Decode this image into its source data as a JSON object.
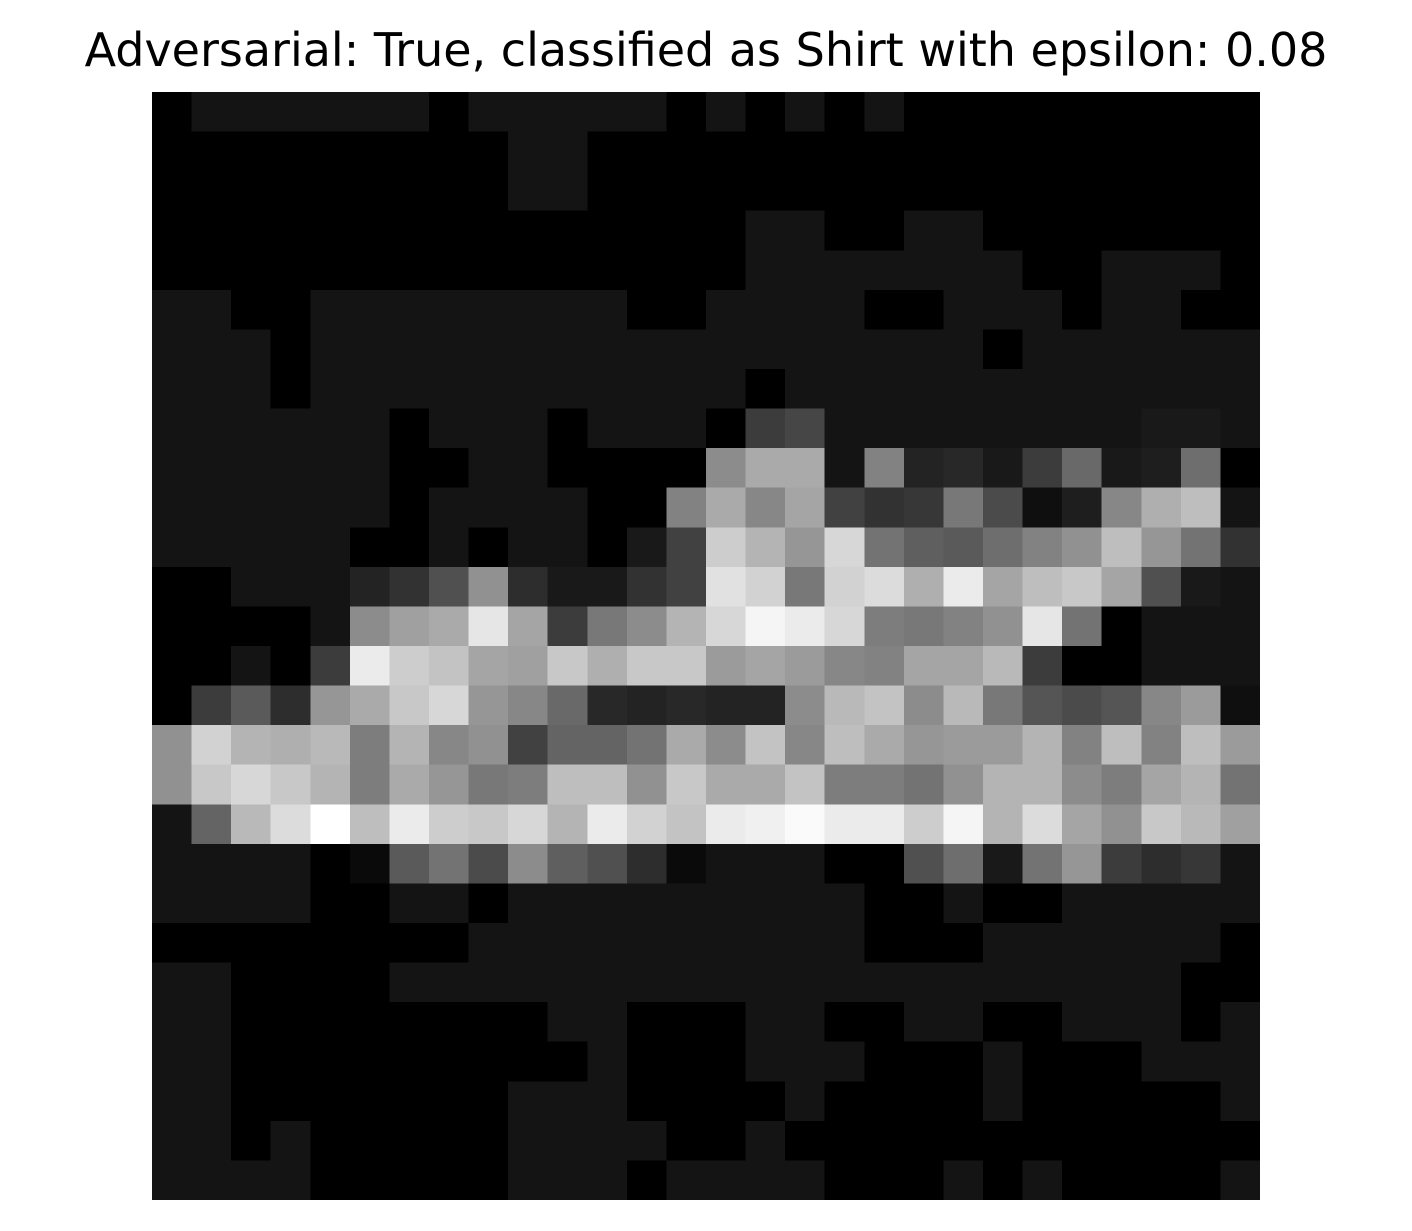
{
  "title": "Adversarial: True, classified as Shirt with epsilon: 0.08",
  "image": {
    "description_label": "Adversarial grayscale sample",
    "rows": 28,
    "cols": 28,
    "pixels": [
      [
        0,
        20,
        20,
        20,
        20,
        20,
        20,
        0,
        20,
        20,
        20,
        20,
        20,
        0,
        20,
        0,
        20,
        0,
        20,
        0,
        0,
        0,
        0,
        0,
        0,
        0,
        0,
        0
      ],
      [
        0,
        0,
        0,
        0,
        0,
        0,
        0,
        0,
        0,
        20,
        20,
        0,
        0,
        0,
        0,
        0,
        0,
        0,
        0,
        0,
        0,
        0,
        0,
        0,
        0,
        0,
        0,
        0
      ],
      [
        0,
        0,
        0,
        0,
        0,
        0,
        0,
        0,
        0,
        20,
        20,
        0,
        0,
        0,
        0,
        0,
        0,
        0,
        0,
        0,
        0,
        0,
        0,
        0,
        0,
        0,
        0,
        0
      ],
      [
        0,
        0,
        0,
        0,
        0,
        0,
        0,
        0,
        0,
        0,
        0,
        0,
        0,
        0,
        0,
        20,
        20,
        0,
        0,
        20,
        20,
        0,
        0,
        0,
        0,
        0,
        0,
        0
      ],
      [
        0,
        0,
        0,
        0,
        0,
        0,
        0,
        0,
        0,
        0,
        0,
        0,
        0,
        0,
        0,
        20,
        20,
        20,
        20,
        20,
        20,
        20,
        0,
        0,
        20,
        20,
        20,
        0
      ],
      [
        20,
        20,
        0,
        0,
        20,
        20,
        20,
        20,
        20,
        20,
        20,
        20,
        0,
        0,
        20,
        20,
        20,
        20,
        0,
        0,
        20,
        20,
        20,
        0,
        20,
        20,
        0,
        0
      ],
      [
        20,
        20,
        20,
        0,
        20,
        20,
        20,
        20,
        20,
        20,
        20,
        20,
        20,
        20,
        20,
        20,
        20,
        20,
        20,
        20,
        20,
        0,
        20,
        20,
        20,
        20,
        20,
        20
      ],
      [
        20,
        20,
        20,
        0,
        20,
        20,
        20,
        20,
        20,
        20,
        20,
        20,
        20,
        20,
        20,
        0,
        20,
        20,
        20,
        20,
        20,
        20,
        20,
        20,
        20,
        20,
        20,
        20
      ],
      [
        20,
        20,
        20,
        20,
        20,
        20,
        0,
        20,
        20,
        20,
        0,
        20,
        20,
        20,
        0,
        60,
        70,
        20,
        20,
        20,
        20,
        20,
        20,
        20,
        20,
        25,
        25,
        20
      ],
      [
        20,
        20,
        20,
        20,
        20,
        20,
        0,
        0,
        20,
        20,
        0,
        0,
        0,
        0,
        140,
        170,
        170,
        20,
        130,
        35,
        40,
        25,
        60,
        105,
        25,
        30,
        110,
        0
      ],
      [
        20,
        20,
        20,
        20,
        20,
        20,
        0,
        20,
        20,
        20,
        20,
        0,
        0,
        130,
        170,
        135,
        165,
        65,
        50,
        55,
        120,
        75,
        15,
        30,
        135,
        175,
        190,
        20
      ],
      [
        20,
        20,
        20,
        20,
        20,
        0,
        0,
        20,
        0,
        20,
        20,
        0,
        25,
        65,
        205,
        180,
        150,
        215,
        115,
        95,
        90,
        110,
        130,
        145,
        190,
        150,
        115,
        50
      ],
      [
        0,
        0,
        20,
        20,
        20,
        35,
        50,
        80,
        145,
        45,
        25,
        25,
        50,
        65,
        225,
        210,
        120,
        210,
        220,
        175,
        235,
        165,
        190,
        200,
        165,
        80,
        25,
        20
      ],
      [
        0,
        0,
        0,
        0,
        20,
        140,
        160,
        170,
        230,
        165,
        60,
        120,
        140,
        180,
        215,
        245,
        235,
        215,
        125,
        120,
        130,
        145,
        230,
        115,
        0,
        20,
        20,
        20
      ],
      [
        0,
        0,
        20,
        0,
        60,
        235,
        205,
        195,
        165,
        160,
        200,
        175,
        200,
        200,
        155,
        165,
        155,
        135,
        130,
        165,
        165,
        185,
        60,
        0,
        0,
        20,
        20,
        20
      ],
      [
        0,
        60,
        90,
        45,
        150,
        170,
        200,
        215,
        150,
        135,
        105,
        40,
        35,
        40,
        35,
        35,
        140,
        185,
        195,
        140,
        185,
        120,
        85,
        75,
        85,
        135,
        155,
        15
      ],
      [
        145,
        210,
        180,
        175,
        185,
        125,
        180,
        135,
        145,
        65,
        100,
        100,
        115,
        170,
        140,
        195,
        135,
        190,
        170,
        150,
        155,
        155,
        180,
        130,
        190,
        130,
        190,
        155
      ],
      [
        145,
        200,
        215,
        200,
        180,
        125,
        170,
        150,
        120,
        125,
        190,
        190,
        145,
        200,
        170,
        170,
        195,
        125,
        125,
        115,
        145,
        180,
        180,
        140,
        125,
        165,
        180,
        115
      ],
      [
        20,
        100,
        185,
        220,
        255,
        190,
        235,
        205,
        200,
        215,
        180,
        235,
        210,
        195,
        235,
        240,
        250,
        235,
        235,
        205,
        245,
        180,
        220,
        165,
        145,
        200,
        185,
        160
      ],
      [
        20,
        20,
        20,
        20,
        0,
        10,
        90,
        115,
        75,
        140,
        95,
        80,
        45,
        10,
        20,
        20,
        20,
        0,
        0,
        80,
        110,
        25,
        115,
        150,
        60,
        45,
        55,
        20
      ],
      [
        20,
        20,
        20,
        20,
        0,
        0,
        20,
        20,
        0,
        20,
        20,
        20,
        20,
        20,
        20,
        20,
        20,
        20,
        0,
        0,
        20,
        0,
        0,
        20,
        20,
        20,
        20,
        20
      ],
      [
        0,
        0,
        0,
        0,
        0,
        0,
        0,
        0,
        20,
        20,
        20,
        20,
        20,
        20,
        20,
        20,
        20,
        20,
        0,
        0,
        0,
        20,
        20,
        20,
        20,
        20,
        20,
        0
      ],
      [
        20,
        20,
        0,
        0,
        0,
        0,
        20,
        20,
        20,
        20,
        20,
        20,
        20,
        20,
        20,
        20,
        20,
        20,
        20,
        20,
        20,
        20,
        20,
        20,
        20,
        20,
        0,
        0
      ],
      [
        20,
        20,
        0,
        0,
        0,
        0,
        0,
        0,
        0,
        0,
        20,
        20,
        0,
        0,
        0,
        20,
        20,
        0,
        0,
        20,
        20,
        0,
        0,
        20,
        20,
        20,
        0,
        20
      ],
      [
        20,
        20,
        0,
        0,
        0,
        0,
        0,
        0,
        0,
        0,
        0,
        20,
        0,
        0,
        0,
        20,
        20,
        20,
        0,
        0,
        0,
        20,
        0,
        0,
        0,
        20,
        20,
        20
      ],
      [
        20,
        20,
        0,
        0,
        0,
        0,
        0,
        0,
        0,
        20,
        20,
        20,
        0,
        0,
        0,
        0,
        20,
        0,
        0,
        0,
        0,
        20,
        0,
        0,
        0,
        0,
        0,
        20
      ],
      [
        20,
        20,
        0,
        20,
        0,
        0,
        0,
        0,
        0,
        20,
        20,
        20,
        20,
        0,
        0,
        20,
        0,
        0,
        0,
        0,
        0,
        0,
        0,
        0,
        0,
        0,
        0,
        0
      ],
      [
        20,
        20,
        20,
        20,
        0,
        0,
        0,
        0,
        0,
        20,
        20,
        20,
        0,
        20,
        20,
        20,
        20,
        0,
        0,
        0,
        20,
        0,
        20,
        0,
        0,
        0,
        0,
        20
      ]
    ]
  }
}
